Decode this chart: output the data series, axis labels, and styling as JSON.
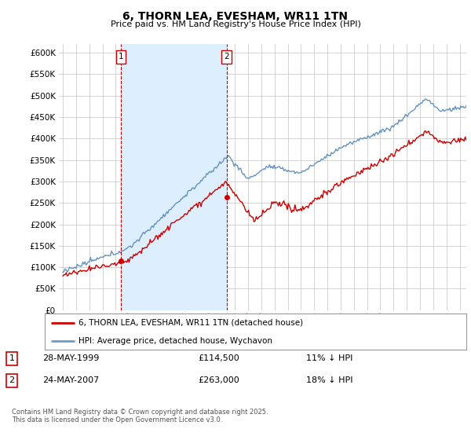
{
  "title": "6, THORN LEA, EVESHAM, WR11 1TN",
  "subtitle": "Price paid vs. HM Land Registry's House Price Index (HPI)",
  "legend_line1": "6, THORN LEA, EVESHAM, WR11 1TN (detached house)",
  "legend_line2": "HPI: Average price, detached house, Wychavon",
  "annotation1_date": "28-MAY-1999",
  "annotation1_price": "£114,500",
  "annotation1_hpi": "11% ↓ HPI",
  "annotation2_date": "24-MAY-2007",
  "annotation2_price": "£263,000",
  "annotation2_hpi": "18% ↓ HPI",
  "footnote": "Contains HM Land Registry data © Crown copyright and database right 2025.\nThis data is licensed under the Open Government Licence v3.0.",
  "red_color": "#cc0000",
  "blue_color": "#5588bb",
  "shade_color": "#ddeeff",
  "background_color": "#ffffff",
  "grid_color": "#cccccc",
  "ylim": [
    0,
    620000
  ],
  "yticks": [
    0,
    50000,
    100000,
    150000,
    200000,
    250000,
    300000,
    350000,
    400000,
    450000,
    500000,
    550000,
    600000
  ],
  "marker1_x": 1999.39,
  "marker1_y": 114500,
  "marker2_x": 2007.39,
  "marker2_y": 263000,
  "vline1_x": 1999.39,
  "vline2_x": 2007.39,
  "xmin": 1995.0,
  "xmax": 2025.5
}
